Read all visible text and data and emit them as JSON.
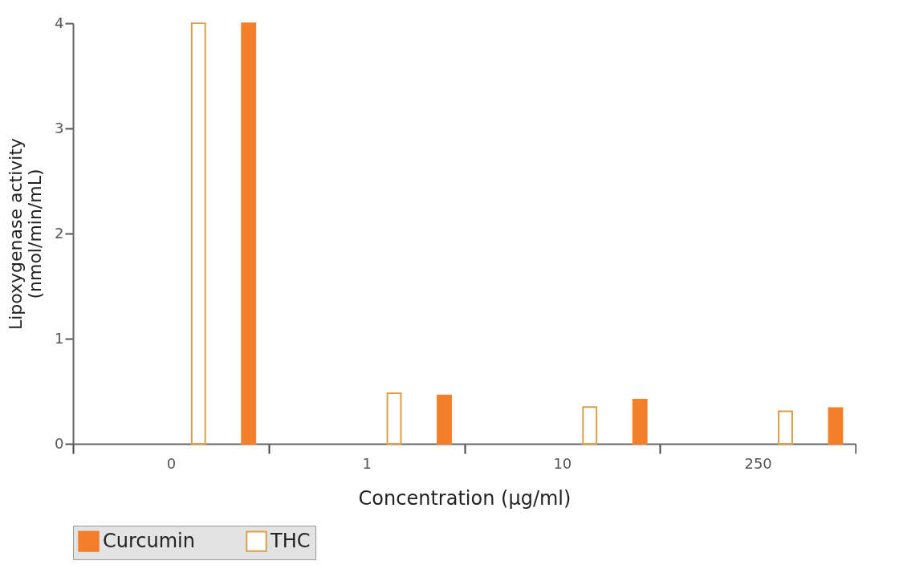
{
  "chart_data": {
    "type": "bar",
    "xlabel": "Concentration (µg/ml)",
    "ylabel": "Lipoxygenase activity\n(nmol/min/mL)",
    "categories": [
      "0",
      "1",
      "10",
      "250"
    ],
    "series": [
      {
        "name": "THC",
        "color": "#ffffff",
        "values": [
          4.0,
          0.48,
          0.35,
          0.31
        ]
      },
      {
        "name": "Curcumin",
        "color": "#f47f2a",
        "values": [
          4.0,
          0.46,
          0.42,
          0.34
        ]
      }
    ],
    "ylim": [
      0,
      4
    ],
    "yticks": [
      0,
      1,
      2,
      3,
      4
    ],
    "grid": false,
    "legend": "bottom"
  }
}
